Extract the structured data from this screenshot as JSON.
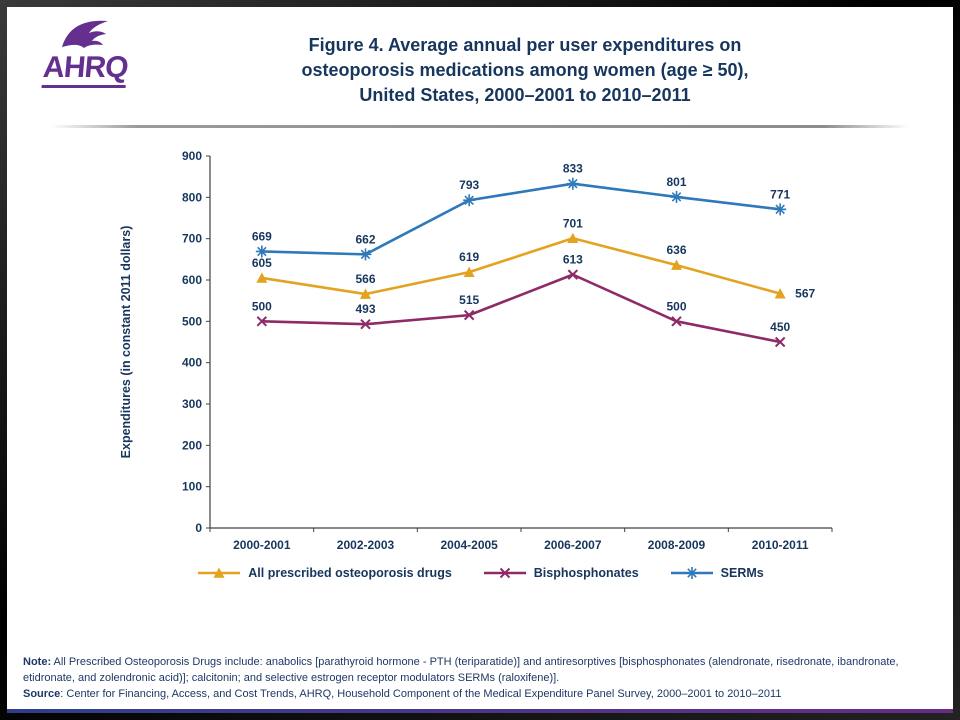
{
  "header": {
    "logo_text": "AHRQ",
    "title_lines": [
      "Figure 4. Average annual per user expenditures on",
      "osteoporosis medications among women (age ≥ 50),",
      "United States, 2000–2001 to 2010–2011"
    ]
  },
  "brand": {
    "purple": "#652F8F",
    "navy": "#17365D"
  },
  "chart_data": {
    "type": "line",
    "categories": [
      "2000-2001",
      "2002-2003",
      "2004-2005",
      "2006-2007",
      "2008-2009",
      "2010-2011"
    ],
    "series": [
      {
        "name": "All prescribed osteoporosis drugs",
        "values": [
          605,
          566,
          619,
          701,
          636,
          567
        ],
        "color": "#E3A321",
        "marker": "triangle"
      },
      {
        "name": "Bisphosphonates",
        "values": [
          500,
          493,
          515,
          613,
          500,
          450
        ],
        "color": "#8E2A67",
        "marker": "x"
      },
      {
        "name": "SERMs",
        "values": [
          669,
          662,
          793,
          833,
          801,
          771
        ],
        "color": "#2E79B9",
        "marker": "star"
      }
    ],
    "title": "",
    "xlabel": "",
    "ylabel": "Expenditures (in constant 2011 dollars)",
    "ylim": [
      0,
      900
    ],
    "ytick_step": 100,
    "grid": false,
    "legend_position": "bottom",
    "label_color": "#17365D"
  },
  "footer": {
    "note_label": "Note:",
    "note_text": " All Prescribed Osteoporosis Drugs include: anabolics [parathyroid hormone - PTH (teriparatide)] and antiresorptives [bisphosphonates (alendronate, risedronate, ibandronate, etidronate, and zolendronic acid)]; calcitonin; and selective estrogen receptor modulators SERMs (raloxifene)].",
    "source_label": "Source",
    "source_text": ": Center for Financing, Access, and Cost Trends, AHRQ, Household Component of the Medical Expenditure Panel Survey, 2000–2001 to 2010–2011"
  }
}
